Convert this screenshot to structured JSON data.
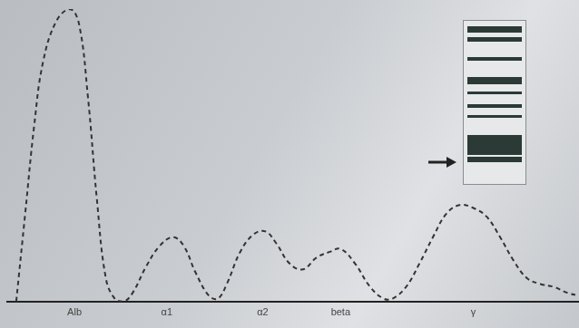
{
  "chart_data": {
    "type": "line",
    "x": [
      10,
      20,
      30,
      40,
      55,
      70,
      80,
      90,
      100,
      110,
      120,
      130,
      140,
      155,
      170,
      185,
      197,
      210,
      225,
      235,
      245,
      260,
      275,
      288,
      300,
      315,
      330,
      345,
      360,
      372,
      388,
      405,
      420,
      430,
      445,
      460,
      475,
      490,
      505,
      520,
      535,
      550,
      565,
      580,
      595,
      610,
      625,
      638
    ],
    "values": [
      0,
      30,
      60,
      82,
      96,
      100,
      95,
      70,
      35,
      8,
      1,
      0,
      3,
      12,
      19,
      22,
      19,
      10,
      2,
      1,
      6,
      17,
      23,
      24,
      20,
      13,
      11,
      15,
      17,
      18,
      13,
      5,
      1,
      1,
      5,
      13,
      22,
      30,
      33,
      32,
      29,
      22,
      14,
      8,
      6,
      5,
      3,
      2
    ],
    "xlim": [
      0,
      638
    ],
    "ylim": [
      0,
      100
    ],
    "xticks": [
      {
        "value": 75,
        "label": "Alb"
      },
      {
        "value": 178,
        "label": "α1"
      },
      {
        "value": 285,
        "label": "α2"
      },
      {
        "value": 372,
        "label": "beta"
      },
      {
        "value": 520,
        "label": "γ"
      }
    ],
    "tick_labels": "x",
    "grid": false,
    "color": "#333333",
    "line_style": "dashed"
  }
}
